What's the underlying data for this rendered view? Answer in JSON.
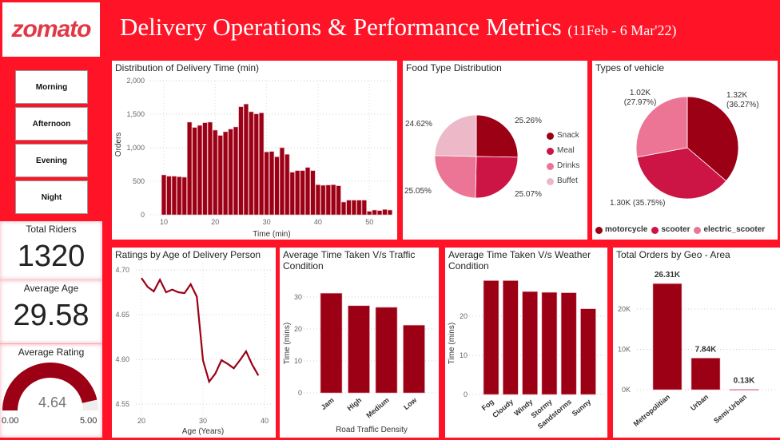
{
  "header": {
    "logo_text": "zomato",
    "title": "Delivery Operations & Performance Metrics",
    "date_range": "(11Feb - 6 Mar'22)"
  },
  "colors": {
    "background": "#ff1427",
    "dark": "#9b0015",
    "medium": "#cc1445",
    "light": "#ec7595",
    "pale": "#edb8c8"
  },
  "slicer": {
    "items": [
      "Morning",
      "Afternoon",
      "Evening",
      "Night"
    ]
  },
  "kpis": {
    "total_riders_label": "Total Riders",
    "total_riders": "1320",
    "avg_age_label": "Average Age",
    "avg_age": "29.58",
    "avg_rating_label": "Average Rating",
    "avg_rating": "4.64",
    "gauge_min": "0.00",
    "gauge_max": "5.00",
    "gauge_value": 4.64,
    "gauge_range": [
      0,
      5
    ]
  },
  "chart_data": [
    {
      "id": "delivery-time",
      "type": "bar",
      "title": "Distribution of Delivery Time (min)",
      "xlabel": "Time (min)",
      "ylabel": "Orders",
      "ylim": [
        0,
        2000
      ],
      "yticks": [
        "0",
        "500",
        "1,000",
        "1,500",
        "2,000"
      ],
      "ytick_values": [
        0,
        500,
        1000,
        1500,
        2000
      ],
      "xticks": [
        10,
        20,
        30,
        40,
        50
      ],
      "grid": true,
      "x": [
        10,
        11,
        12,
        13,
        14,
        15,
        16,
        17,
        18,
        19,
        20,
        21,
        22,
        23,
        24,
        25,
        26,
        27,
        28,
        29,
        30,
        31,
        32,
        33,
        34,
        35,
        36,
        37,
        38,
        39,
        40,
        41,
        42,
        43,
        44,
        45,
        46,
        47,
        48,
        49,
        50,
        51,
        52,
        53,
        54
      ],
      "values": [
        595,
        575,
        575,
        567,
        560,
        1381,
        1302,
        1333,
        1373,
        1381,
        1262,
        1183,
        1238,
        1278,
        1310,
        1611,
        1651,
        1536,
        1504,
        1520,
        937,
        944,
        865,
        1000,
        901,
        635,
        659,
        659,
        706,
        659,
        448,
        440,
        444,
        448,
        433,
        190,
        218,
        218,
        218,
        218,
        52,
        71,
        63,
        79,
        71
      ]
    },
    {
      "id": "food-type",
      "type": "pie",
      "title": "Food Type Distribution",
      "categories": [
        "Snack",
        "Meal",
        "Drinks",
        "Buffet"
      ],
      "values": [
        25.26,
        25.07,
        25.05,
        24.62
      ],
      "labels": [
        "25.26%",
        "25.07%",
        "25.05%",
        "24.62%"
      ],
      "legend": "right"
    },
    {
      "id": "vehicle",
      "type": "pie",
      "title": "Types of vehicle",
      "categories": [
        "motorcycle",
        "scooter",
        "electric_scooter"
      ],
      "values": [
        36.27,
        35.75,
        27.97
      ],
      "labels": [
        "1.32K (36.27%)",
        "1.30K (35.75%)",
        "1.02K (27.97%)"
      ],
      "legend": "bottom"
    },
    {
      "id": "ratings-age",
      "type": "line",
      "title": "Ratings by Age of Delivery Person",
      "xlabel": "Age (Years)",
      "ylabel": "",
      "ylim": [
        4.55,
        4.7
      ],
      "yticks": [
        "4.55",
        "4.60",
        "4.65",
        "4.70"
      ],
      "ytick_values": [
        4.55,
        4.6,
        4.65,
        4.7
      ],
      "xticks": [
        20,
        30,
        40
      ],
      "grid": true,
      "x": [
        20,
        21,
        22,
        23,
        24,
        25,
        26,
        27,
        28,
        29,
        30,
        31,
        32,
        33,
        34,
        35,
        36,
        37,
        38,
        39
      ],
      "values": [
        4.691,
        4.681,
        4.676,
        4.689,
        4.675,
        4.678,
        4.675,
        4.674,
        4.684,
        4.67,
        4.599,
        4.575,
        4.584,
        4.599,
        4.595,
        4.59,
        4.599,
        4.609,
        4.594,
        4.582
      ]
    },
    {
      "id": "traffic",
      "type": "bar",
      "title": "Average Time Taken V/s Traffic Condition",
      "xlabel": "Road Traffic Density",
      "ylabel": "Time (mins)",
      "ylim": [
        0,
        33
      ],
      "yticks": [
        "0",
        "10",
        "20",
        "30"
      ],
      "ytick_values": [
        0,
        10,
        20,
        30
      ],
      "grid": true,
      "categories": [
        "Jam",
        "High",
        "Medium",
        "Low"
      ],
      "values": [
        31.2,
        27.3,
        26.8,
        21.2
      ]
    },
    {
      "id": "weather",
      "type": "bar",
      "title": "Average Time Taken V/s Weather Condition",
      "xlabel": "",
      "ylabel": "Time (mins)",
      "ylim": [
        0,
        30
      ],
      "yticks": [
        "0",
        "10",
        "20"
      ],
      "ytick_values": [
        0,
        10,
        20
      ],
      "grid": true,
      "categories": [
        "Fog",
        "Cloudy",
        "Windy",
        "Stormy",
        "Sandstorms",
        "Sunny"
      ],
      "values": [
        29.1,
        29.1,
        26.3,
        26.1,
        26.0,
        21.9
      ]
    },
    {
      "id": "geo",
      "type": "bar",
      "title": "Total Orders by Geo - Area",
      "xlabel": "",
      "ylabel": "",
      "ylim": [
        0,
        28000
      ],
      "yticks": [
        "0K",
        "10K",
        "20K"
      ],
      "ytick_values": [
        0,
        10000,
        20000
      ],
      "grid": true,
      "categories": [
        "Metropolitian",
        "Urban",
        "Semi-Urban"
      ],
      "values": [
        26310,
        7840,
        130
      ],
      "data_labels": [
        "26.31K",
        "7.84K",
        "0.13K"
      ]
    }
  ]
}
